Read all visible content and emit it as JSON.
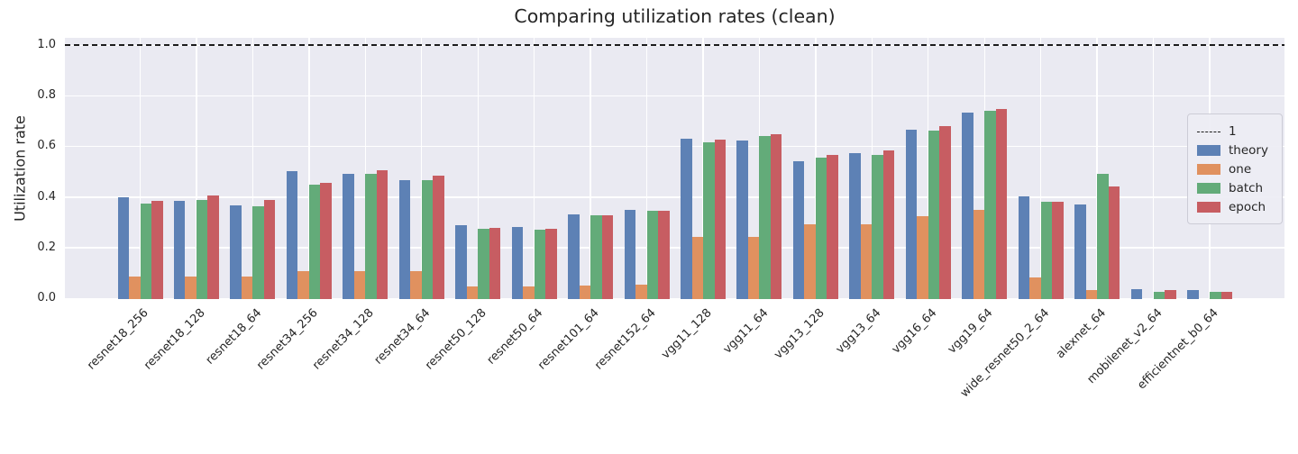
{
  "chart_data": {
    "type": "bar",
    "title": "Comparing utilization rates (clean)",
    "xlabel": "",
    "ylabel": "Utilization rate",
    "ylim": [
      0,
      1.03
    ],
    "grid": true,
    "legend_position": "center right",
    "yticks": [
      0.0,
      0.2,
      0.4,
      0.6,
      0.8,
      1.0
    ],
    "reference_line": {
      "label": "1",
      "value": 1.0,
      "style": "dashed",
      "color": "#1c1c1c"
    },
    "categories": [
      "resnet18_256",
      "resnet18_128",
      "resnet18_64",
      "resnet34_256",
      "resnet34_128",
      "resnet34_64",
      "resnet50_128",
      "resnet50_64",
      "resnet101_64",
      "resnet152_64",
      "vgg11_128",
      "vgg11_64",
      "vgg13_128",
      "vgg13_64",
      "vgg16_64",
      "vgg19_64",
      "wide_resnet50_2_64",
      "alexnet_64",
      "mobilenet_v2_64",
      "efficientnet_b0_64"
    ],
    "series": [
      {
        "name": "theory",
        "color": "#5d81b5",
        "values": [
          0.401,
          0.388,
          0.371,
          0.505,
          0.495,
          0.469,
          0.291,
          0.286,
          0.336,
          0.351,
          0.633,
          0.628,
          0.546,
          0.577,
          0.669,
          0.737,
          0.404,
          0.374,
          0.038,
          0.035
        ]
      },
      {
        "name": "one",
        "color": "#e0915f",
        "values": [
          0.088,
          0.088,
          0.088,
          0.11,
          0.11,
          0.11,
          0.051,
          0.051,
          0.055,
          0.057,
          0.246,
          0.246,
          0.297,
          0.297,
          0.327,
          0.351,
          0.086,
          0.037,
          0.0,
          0.0
        ]
      },
      {
        "name": "batch",
        "color": "#63ab79",
        "values": [
          0.376,
          0.391,
          0.366,
          0.452,
          0.494,
          0.471,
          0.278,
          0.274,
          0.33,
          0.349,
          0.619,
          0.644,
          0.558,
          0.568,
          0.667,
          0.744,
          0.384,
          0.494,
          0.03,
          0.027
        ]
      },
      {
        "name": "epoch",
        "color": "#c75d62",
        "values": [
          0.387,
          0.408,
          0.391,
          0.458,
          0.508,
          0.488,
          0.281,
          0.278,
          0.33,
          0.349,
          0.63,
          0.652,
          0.571,
          0.587,
          0.682,
          0.751,
          0.384,
          0.444,
          0.034,
          0.03
        ]
      }
    ],
    "legend_items": [
      "1",
      "theory",
      "one",
      "batch",
      "epoch"
    ]
  },
  "colors": {
    "plot_background": "#eaeaf2",
    "grid_line": "#ffffff",
    "text": "#262626"
  }
}
